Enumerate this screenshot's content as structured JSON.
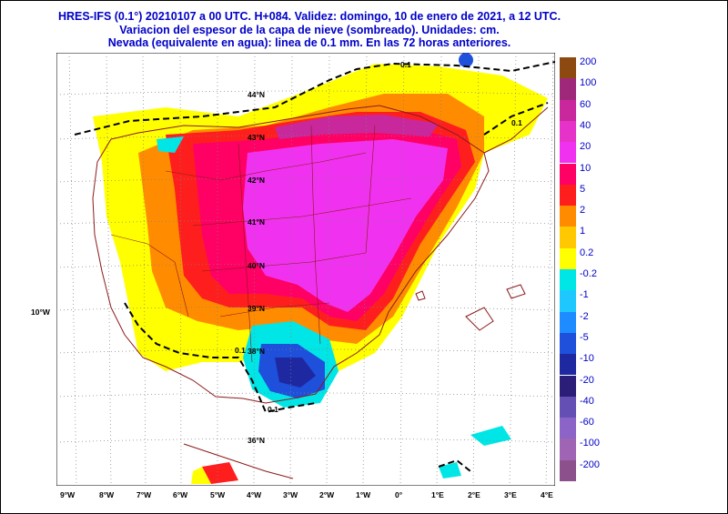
{
  "header": {
    "line1": "HRES-IFS (0.1°) 20210107 a 00 UTC.  H+084. Validez: domingo, 10 de enero de 2021,  a  12 UTC.",
    "line2": "Variacion del espesor de la capa de nieve (sombreado). Unidades: cm.",
    "line3": "Nevada (equivalente en agua): linea de 0.1 mm. En las 72 horas anteriores."
  },
  "x_axis_labels": [
    "9°W",
    "8°W",
    "7°W",
    "6°W",
    "5°W",
    "4°W",
    "3°W",
    "2°W",
    "1°W",
    "0°",
    "1°E",
    "2°E",
    "3°E",
    "4°E"
  ],
  "lat_labels": [
    "44°N",
    "43°N",
    "42°N",
    "41°N",
    "40°N",
    "39°N",
    "38°N",
    "36°N"
  ],
  "lon_side_label": "10°W",
  "contour_labels": [
    "0.1",
    "0.1",
    "0.1",
    "0.1"
  ],
  "legend": {
    "entries": [
      {
        "label": "200",
        "color": "#8c4a10"
      },
      {
        "label": "100",
        "color": "#a0287a"
      },
      {
        "label": "60",
        "color": "#c8289c"
      },
      {
        "label": "40",
        "color": "#e632c8"
      },
      {
        "label": "20",
        "color": "#f032f0"
      },
      {
        "label": "10",
        "color": "#ff0064"
      },
      {
        "label": "5",
        "color": "#ff1e1e"
      },
      {
        "label": "2",
        "color": "#ff8c00"
      },
      {
        "label": "1",
        "color": "#ffc800"
      },
      {
        "label": "0.2",
        "color": "#ffff00"
      },
      {
        "label": "-0.2",
        "color": "#00e6e6"
      },
      {
        "label": "-1",
        "color": "#1ec8ff"
      },
      {
        "label": "-2",
        "color": "#1e8cff"
      },
      {
        "label": "-5",
        "color": "#1e50dc"
      },
      {
        "label": "-10",
        "color": "#1e28a0"
      },
      {
        "label": "-20",
        "color": "#2a1e78"
      },
      {
        "label": "-40",
        "color": "#6450b4"
      },
      {
        "label": "-60",
        "color": "#8c64c8"
      },
      {
        "label": "-100",
        "color": "#a064b4"
      },
      {
        "label": "-200",
        "color": "#8c508c"
      }
    ]
  },
  "colors": {
    "title": "#0000c8",
    "coast": "#8b1a1a",
    "grid": "#808080",
    "contour": "#000000"
  }
}
